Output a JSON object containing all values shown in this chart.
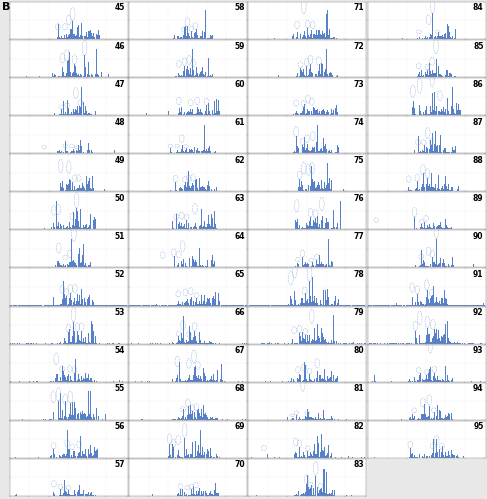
{
  "title_letter": "B",
  "n_cols": 4,
  "bar_color": "#4472C4",
  "background_color": "#FFFFFF",
  "outer_bg": "#E8E8E8",
  "num_bars": 365,
  "number_fontsize": 5.5,
  "col_ranges": [
    [
      45,
      46,
      47,
      48,
      49,
      50,
      51,
      52,
      53,
      54,
      55,
      56,
      57
    ],
    [
      58,
      59,
      60,
      61,
      62,
      63,
      64,
      65,
      66,
      67,
      68,
      69,
      70
    ],
    [
      71,
      72,
      73,
      74,
      75,
      76,
      77,
      78,
      79,
      80,
      81,
      82,
      83
    ],
    [
      84,
      85,
      86,
      87,
      88,
      89,
      90,
      91,
      92,
      93,
      94,
      95
    ]
  ]
}
